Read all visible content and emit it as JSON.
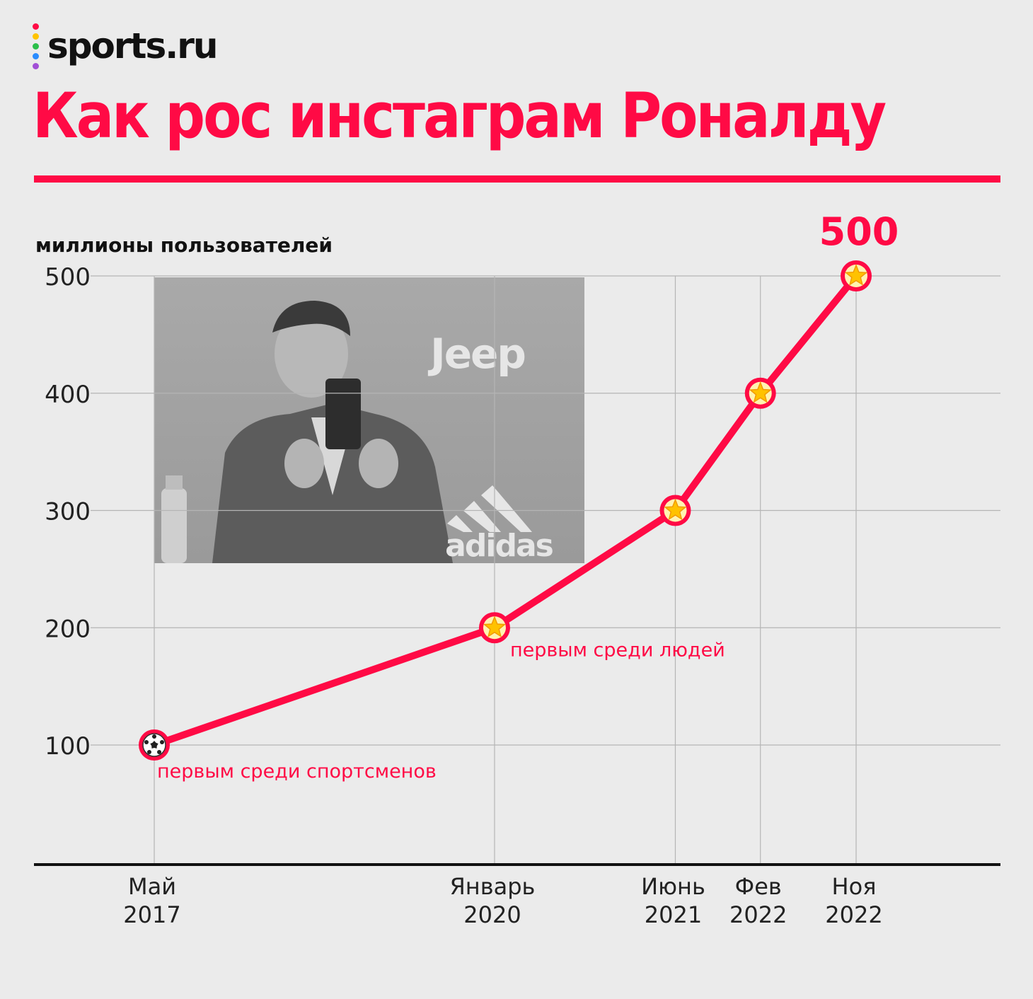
{
  "brand": {
    "logo_text": "sports.ru",
    "dot_colors": [
      "#ff0a45",
      "#ffc400",
      "#2bbf4a",
      "#2a8cff",
      "#a14fd6"
    ]
  },
  "title": "Как рос инстаграм Роналду",
  "colors": {
    "accent": "#ff0a45",
    "background": "#ebebeb",
    "grid": "#b5b5b5",
    "axis": "#111111"
  },
  "chart_data": {
    "type": "line",
    "ylabel": "миллионы пользователей",
    "ylim": [
      0,
      500
    ],
    "yticks": [
      100,
      200,
      300,
      400,
      500
    ],
    "grid": true,
    "x_time_range": [
      "2017-05",
      "2022-11"
    ],
    "x": [
      "2017-05",
      "2020-01",
      "2021-06",
      "2022-02",
      "2022-11"
    ],
    "x_labels": [
      {
        "month": "Май",
        "year": "2017"
      },
      {
        "month": "Январь",
        "year": "2020"
      },
      {
        "month": "Июнь",
        "year": "2021"
      },
      {
        "month": "Фев",
        "year": "2022"
      },
      {
        "month": "Ноя",
        "year": "2022"
      }
    ],
    "series": [
      {
        "values": [
          100,
          200,
          300,
          400,
          500
        ],
        "markers": [
          "soccer-ball-icon",
          "star-icon",
          "star-icon",
          "star-icon",
          "star-icon"
        ]
      }
    ],
    "annotations": [
      {
        "point_index": 0,
        "text": "первым среди спортсменов"
      },
      {
        "point_index": 1,
        "text": "первым среди людей"
      },
      {
        "point_index": 4,
        "text": "500"
      }
    ]
  },
  "photo": {
    "description_icon": "ronaldo-selfie-photo",
    "sponsor_jeep": "Jeep",
    "sponsor_adidas": "adidas"
  }
}
